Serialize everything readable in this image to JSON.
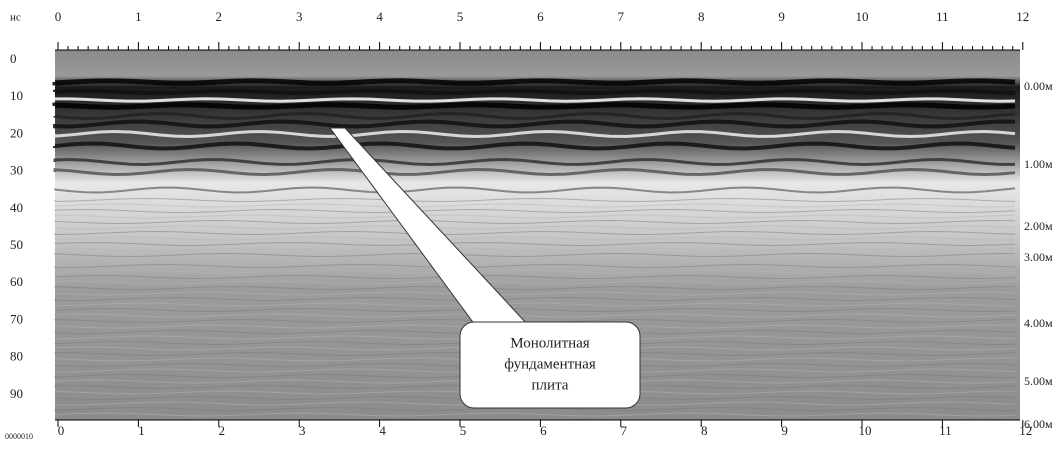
{
  "axes": {
    "left_title": "нс",
    "top_ticks": [
      "0",
      "1",
      "2",
      "3",
      "4",
      "5",
      "6",
      "7",
      "8",
      "9",
      "10",
      "11",
      "12"
    ],
    "left_ticks": [
      "0",
      "10",
      "20",
      "30",
      "40",
      "50",
      "60",
      "70",
      "80",
      "90"
    ],
    "right_ticks": [
      "0.00м",
      "1.00м",
      "2.00м",
      "3.00м",
      "4.00м",
      "5.00м",
      "6.00м"
    ],
    "bottom_ticks": [
      "0",
      "1",
      "2",
      "3",
      "4",
      "5",
      "6",
      "7",
      "8",
      "9",
      "10",
      "11",
      "12"
    ],
    "bottom_corner": "0000010"
  },
  "annotation": {
    "lines": [
      "Монолитная",
      "фундаментная",
      "плита"
    ]
  }
}
